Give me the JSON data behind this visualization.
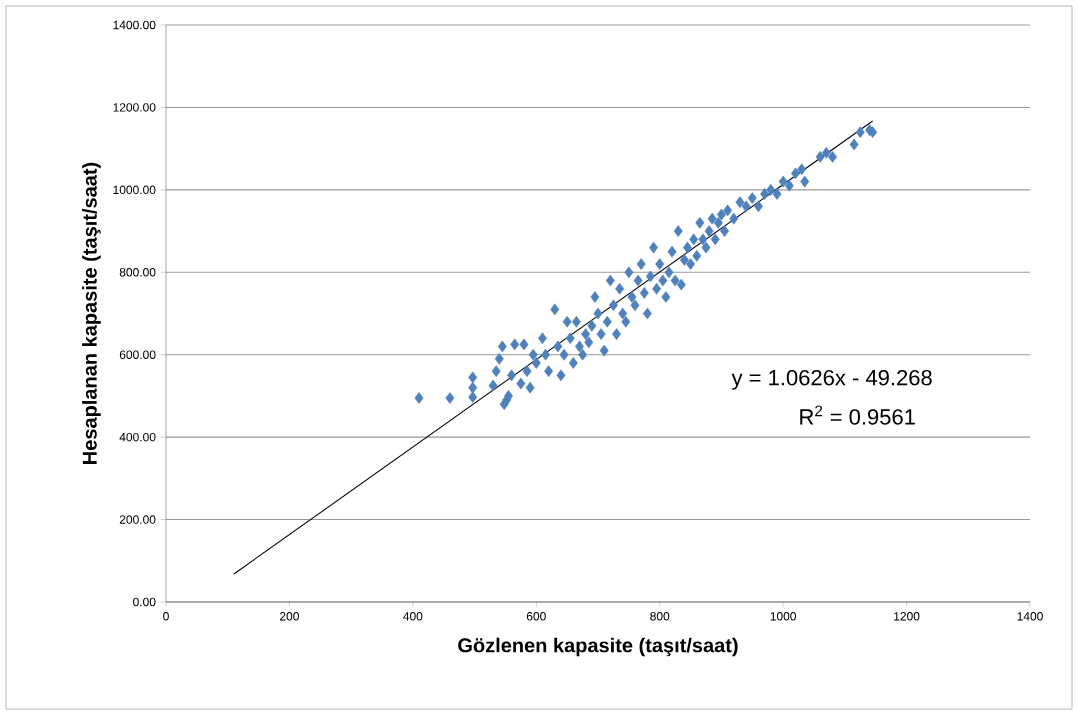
{
  "chart_data": {
    "type": "scatter",
    "xlabel": "Gözlenen kapasite (taşıt/saat)",
    "ylabel": "Hesaplanan kapasite (taşıt/saat)",
    "annotations": [
      "y = 1.0626x - 49.268",
      "R$^{2}$ = 0.9561"
    ],
    "xlim": [
      0,
      1400
    ],
    "ylim": [
      0,
      1400
    ],
    "xticks": [
      0,
      200,
      400,
      600,
      800,
      1000,
      1200,
      1400
    ],
    "yticks": [
      {
        "value": 0,
        "label": "0.00"
      },
      {
        "value": 200,
        "label": "200.00"
      },
      {
        "value": 400,
        "label": "400.00"
      },
      {
        "value": 600,
        "label": "600.00"
      },
      {
        "value": 800,
        "label": "800.00"
      },
      {
        "value": 1000,
        "label": "1000.00"
      },
      {
        "value": 1200,
        "label": "1200.00"
      },
      {
        "value": 1400,
        "label": "1400.00"
      }
    ],
    "grid": "y",
    "series": [
      {
        "marker": "diamond",
        "color": "#4f81bd",
        "x": [
          410,
          460,
          497,
          497,
          497,
          530,
          535,
          540,
          545,
          548,
          552,
          555,
          560,
          565,
          575,
          580,
          585,
          590,
          595,
          600,
          610,
          615,
          620,
          630,
          635,
          640,
          645,
          650,
          655,
          660,
          665,
          670,
          675,
          680,
          685,
          690,
          695,
          700,
          705,
          710,
          715,
          720,
          725,
          730,
          735,
          740,
          745,
          750,
          755,
          760,
          765,
          770,
          775,
          780,
          785,
          790,
          795,
          800,
          805,
          810,
          815,
          820,
          825,
          830,
          835,
          840,
          845,
          850,
          855,
          860,
          865,
          870,
          875,
          880,
          885,
          890,
          895,
          900,
          905,
          910,
          920,
          930,
          940,
          950,
          960,
          970,
          980,
          990,
          1000,
          1010,
          1020,
          1030,
          1035,
          1060,
          1070,
          1080,
          1115,
          1125,
          1140,
          1145
        ],
        "values": [
          495,
          495,
          545,
          520,
          497,
          525,
          560,
          590,
          620,
          480,
          490,
          500,
          550,
          625,
          530,
          625,
          560,
          520,
          600,
          580,
          640,
          600,
          560,
          710,
          620,
          550,
          600,
          680,
          640,
          580,
          680,
          620,
          600,
          650,
          630,
          670,
          740,
          700,
          650,
          610,
          680,
          780,
          720,
          650,
          760,
          700,
          680,
          800,
          740,
          720,
          780,
          820,
          750,
          700,
          790,
          860,
          760,
          820,
          780,
          740,
          800,
          850,
          780,
          900,
          770,
          830,
          860,
          820,
          880,
          840,
          920,
          880,
          860,
          900,
          930,
          880,
          920,
          940,
          900,
          950,
          930,
          970,
          960,
          980,
          960,
          990,
          1000,
          990,
          1020,
          1010,
          1040,
          1050,
          1020,
          1080,
          1090,
          1080,
          1110,
          1140,
          1145,
          1140
        ]
      },
      {
        "type": "line",
        "color": "#000000",
        "x": [
          110,
          1145
        ],
        "values": [
          68,
          1167
        ]
      }
    ]
  }
}
